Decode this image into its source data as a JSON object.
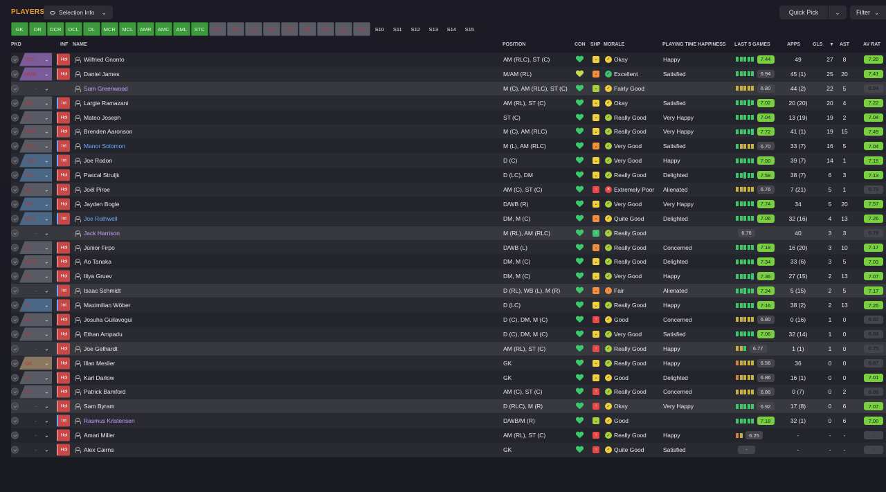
{
  "header": {
    "title": "PLAYERS",
    "selection_info": "Selection Info",
    "quick_pick": "Quick Pick",
    "filter": "Filter"
  },
  "positions": [
    {
      "label": "GK",
      "state": "green"
    },
    {
      "label": "DR",
      "state": "green"
    },
    {
      "label": "DCR",
      "state": "green"
    },
    {
      "label": "DCL",
      "state": "green"
    },
    {
      "label": "DL",
      "state": "green"
    },
    {
      "label": "MCR",
      "state": "green"
    },
    {
      "label": "MCL",
      "state": "green"
    },
    {
      "label": "AMR",
      "state": "green"
    },
    {
      "label": "AMC",
      "state": "green"
    },
    {
      "label": "AML",
      "state": "green"
    },
    {
      "label": "STC",
      "state": "green"
    },
    {
      "label": "S1",
      "state": "grey"
    },
    {
      "label": "S2",
      "state": "grey"
    },
    {
      "label": "S3",
      "state": "grey"
    },
    {
      "label": "S4",
      "state": "grey"
    },
    {
      "label": "S5",
      "state": "grey"
    },
    {
      "label": "S6",
      "state": "grey"
    },
    {
      "label": "S7",
      "state": "grey"
    },
    {
      "label": "S8",
      "state": "grey"
    },
    {
      "label": "S9",
      "state": "grey"
    },
    {
      "label": "S10",
      "state": "dark"
    },
    {
      "label": "S11",
      "state": "dark"
    },
    {
      "label": "S12",
      "state": "dark"
    },
    {
      "label": "S13",
      "state": "dark"
    },
    {
      "label": "S14",
      "state": "dark"
    },
    {
      "label": "S15",
      "state": "dark"
    }
  ],
  "columns": {
    "pkd": "PKD",
    "inf": "INF",
    "name": "NAME",
    "position": "POSITION",
    "con": "CON",
    "shp": "SHP",
    "morale": "MORALE",
    "pth": "PLAYING TIME HAPPINESS",
    "last5": "LAST 5 GAMES",
    "apps": "APPS",
    "gls": "GLS",
    "ast": "AST",
    "avrat": "AV RAT"
  },
  "players": [
    {
      "pos": "STC",
      "poscol": "purple",
      "inf": "Hol",
      "name": "Wilfried Gnonto",
      "namecol": "",
      "position": "AM (RLC), ST (C)",
      "con": "g",
      "shp": "y",
      "mi": "mi-y",
      "morale": "Okay",
      "pth": "Happy",
      "bars": [
        "g",
        "g",
        "g",
        "g",
        "g"
      ],
      "rating": "7.44",
      "rc": "r-green",
      "apps": "49",
      "gls": "27",
      "ast": "8",
      "avrat": "7.20",
      "ac": "r-green"
    },
    {
      "pos": "AMR",
      "poscol": "purple",
      "inf": "Hol",
      "name": "Daniel James",
      "namecol": "",
      "position": "M/AM (RL)",
      "con": "yel",
      "shp": "o",
      "mi": "mi-g",
      "morale": "Excellent",
      "pth": "Satisfied",
      "bars": [
        "g",
        "g",
        "g",
        "g",
        "g"
      ],
      "rating": "6.94",
      "rc": "r-grey",
      "apps": "45 (1)",
      "gls": "25",
      "ast": "20",
      "avrat": "7.41",
      "ac": "r-green"
    },
    {
      "pos": "-",
      "poscol": "none",
      "inf": "",
      "name": "Sam Greenwood",
      "namecol": "purple",
      "position": "M (C), AM (RLC), ST (C)",
      "con": "g",
      "shp": "lg",
      "mi": "mi-y",
      "morale": "Fairly Good",
      "pth": "",
      "bars": [
        "y",
        "y",
        "y",
        "y",
        "y"
      ],
      "rating": "6.80",
      "rc": "r-grey",
      "apps": "44 (2)",
      "gls": "22",
      "ast": "5",
      "avrat": "6.94",
      "ac": "r-grey",
      "hl": true
    },
    {
      "pos": "MR",
      "poscol": "greyp",
      "inf": "Int",
      "name": "Largie Ramazani",
      "namecol": "",
      "position": "AM (RL), ST (C)",
      "con": "g",
      "shp": "y",
      "mi": "mi-y",
      "morale": "Okay",
      "pth": "Satisfied",
      "bars": [
        "g",
        "g",
        "g",
        "tg",
        "g"
      ],
      "rating": "7.02",
      "rc": "r-green",
      "apps": "20 (20)",
      "gls": "20",
      "ast": "4",
      "avrat": "7.22",
      "ac": "r-green"
    },
    {
      "pos": "ST",
      "poscol": "greyp",
      "inf": "Hol",
      "name": "Mateo Joseph",
      "namecol": "",
      "position": "ST (C)",
      "con": "g",
      "shp": "y",
      "mi": "mi-lg",
      "morale": "Really Good",
      "pth": "Very Happy",
      "bars": [
        "g",
        "g",
        "g",
        "g",
        "g"
      ],
      "rating": "7.04",
      "rc": "r-green",
      "apps": "13 (19)",
      "gls": "19",
      "ast": "2",
      "avrat": "7.04",
      "ac": "r-green"
    },
    {
      "pos": "AMC",
      "poscol": "greyp",
      "inf": "Hol",
      "name": "Brenden Aaronson",
      "namecol": "",
      "position": "M (C), AM (RLC)",
      "con": "g",
      "shp": "y",
      "mi": "mi-lg",
      "morale": "Really Good",
      "pth": "Very Happy",
      "bars": [
        "g",
        "g",
        "g",
        "g",
        "tg"
      ],
      "rating": "7.72",
      "rc": "r-green",
      "apps": "41 (1)",
      "gls": "19",
      "ast": "15",
      "avrat": "7.49",
      "ac": "r-green"
    },
    {
      "pos": "AML",
      "poscol": "greyp",
      "inf": "Int",
      "name": "Manor Solomon",
      "namecol": "blue",
      "position": "M (L), AM (RLC)",
      "con": "g",
      "shp": "o",
      "mi": "mi-lg",
      "morale": "Very Good",
      "pth": "Satisfied",
      "bars": [
        "g",
        "y",
        "y",
        "y",
        "y"
      ],
      "rating": "6.70",
      "rc": "r-grey",
      "apps": "33 (7)",
      "gls": "16",
      "ast": "5",
      "avrat": "7.04",
      "ac": "r-green"
    },
    {
      "pos": "DCR",
      "poscol": "blue",
      "inf": "Int",
      "name": "Joe Rodon",
      "namecol": "",
      "position": "D (C)",
      "con": "g",
      "shp": "y",
      "mi": "mi-lg",
      "morale": "Very Good",
      "pth": "Happy",
      "bars": [
        "g",
        "g",
        "g",
        "g",
        "g"
      ],
      "rating": "7.00",
      "rc": "r-green",
      "apps": "39 (7)",
      "gls": "14",
      "ast": "1",
      "avrat": "7.15",
      "ac": "r-green"
    },
    {
      "pos": "DCL",
      "poscol": "blue",
      "inf": "Hol",
      "name": "Pascal Struijk",
      "namecol": "",
      "position": "D (LC), DM",
      "con": "g",
      "shp": "y",
      "mi": "mi-lg",
      "morale": "Really Good",
      "pth": "Delighted",
      "bars": [
        "g",
        "g",
        "tg",
        "g",
        "g"
      ],
      "rating": "7.58",
      "rc": "r-green",
      "apps": "38 (7)",
      "gls": "6",
      "ast": "3",
      "avrat": "7.13",
      "ac": "r-green"
    },
    {
      "pos": "S1",
      "poscol": "greyp",
      "inf": "Hol",
      "name": "Joël Piroe",
      "namecol": "",
      "position": "AM (C), ST (C)",
      "con": "g",
      "shp": "r",
      "mi": "mi-r",
      "morale": "Extremely Poor",
      "pth": "Alienated",
      "bars": [
        "y",
        "y",
        "y",
        "y",
        "y"
      ],
      "rating": "6.76",
      "rc": "r-grey",
      "apps": "7 (21)",
      "gls": "5",
      "ast": "1",
      "avrat": "6.75",
      "ac": "r-grey"
    },
    {
      "pos": "DR",
      "poscol": "blue",
      "inf": "Hol",
      "name": "Jayden Bogle",
      "namecol": "",
      "position": "D/WB (R)",
      "con": "g",
      "shp": "y",
      "mi": "mi-lg",
      "morale": "Very Good",
      "pth": "Very Happy",
      "bars": [
        "g",
        "g",
        "g",
        "g",
        "g"
      ],
      "rating": "7.74",
      "rc": "r-green",
      "apps": "34",
      "gls": "5",
      "ast": "20",
      "avrat": "7.57",
      "ac": "r-green"
    },
    {
      "pos": "MCL",
      "poscol": "blue",
      "inf": "Int",
      "name": "Joe Rothwell",
      "namecol": "blue",
      "position": "DM, M (C)",
      "con": "g",
      "shp": "o",
      "mi": "mi-y",
      "morale": "Quite Good",
      "pth": "Delighted",
      "bars": [
        "g",
        "g",
        "g",
        "g",
        "g"
      ],
      "rating": "7.06",
      "rc": "r-green",
      "apps": "32 (16)",
      "gls": "4",
      "ast": "13",
      "avrat": "7.26",
      "ac": "r-green"
    },
    {
      "pos": "-",
      "poscol": "none",
      "inf": "",
      "name": "Jack Harrison",
      "namecol": "purple",
      "position": "M (RL), AM (RLC)",
      "con": "g",
      "shp": "g",
      "mi": "mi-lg",
      "morale": "Really Good",
      "pth": "",
      "bars": [],
      "rating": "6.76",
      "rc": "r-grey",
      "apps": "40",
      "gls": "3",
      "ast": "3",
      "avrat": "6.79",
      "ac": "r-grey",
      "hl": true
    },
    {
      "pos": "S2",
      "poscol": "greyp",
      "inf": "Hol",
      "name": "Júnior Firpo",
      "namecol": "",
      "position": "D/WB (L)",
      "con": "g",
      "shp": "o",
      "mi": "mi-lg",
      "morale": "Really Good",
      "pth": "Concerned",
      "bars": [
        "g",
        "g",
        "g",
        "g",
        "g"
      ],
      "rating": "7.18",
      "rc": "r-green",
      "apps": "16 (20)",
      "gls": "3",
      "ast": "10",
      "avrat": "7.17",
      "ac": "r-green"
    },
    {
      "pos": "MCR",
      "poscol": "greyp",
      "inf": "Hol",
      "name": "Ao Tanaka",
      "namecol": "",
      "position": "DM, M (C)",
      "con": "g",
      "shp": "y",
      "mi": "mi-lg",
      "morale": "Really Good",
      "pth": "Delighted",
      "bars": [
        "g",
        "g",
        "g",
        "g",
        "g"
      ],
      "rating": "7.34",
      "rc": "r-green",
      "apps": "33 (6)",
      "gls": "3",
      "ast": "5",
      "avrat": "7.03",
      "ac": "r-green"
    },
    {
      "pos": "S3",
      "poscol": "greyp",
      "inf": "Hol",
      "name": "Iliya Gruev",
      "namecol": "",
      "position": "DM, M (C)",
      "con": "g",
      "shp": "y",
      "mi": "mi-lg",
      "morale": "Very Good",
      "pth": "Happy",
      "bars": [
        "g",
        "g",
        "g",
        "g",
        "tg"
      ],
      "rating": "7.36",
      "rc": "r-green",
      "apps": "27 (15)",
      "gls": "2",
      "ast": "13",
      "avrat": "7.07",
      "ac": "r-green"
    },
    {
      "pos": "-",
      "poscol": "none",
      "inf": "Int",
      "name": "Isaac Schmidt",
      "namecol": "",
      "position": "D (RL), WB (L), M (R)",
      "con": "g",
      "shp": "o",
      "mi": "mi-o",
      "morale": "Fair",
      "pth": "Alienated",
      "bars": [
        "g",
        "g",
        "tg",
        "g",
        "g"
      ],
      "rating": "7.24",
      "rc": "r-green",
      "apps": "5 (15)",
      "gls": "2",
      "ast": "5",
      "avrat": "7.17",
      "ac": "r-green",
      "hl": true
    },
    {
      "pos": "DL",
      "poscol": "blue",
      "inf": "Int",
      "name": "Maximilian Wöber",
      "namecol": "",
      "position": "D (LC)",
      "con": "g",
      "shp": "y",
      "mi": "mi-lg",
      "morale": "Really Good",
      "pth": "Happy",
      "bars": [
        "g",
        "g",
        "g",
        "g",
        "g"
      ],
      "rating": "7.16",
      "rc": "r-green",
      "apps": "38 (2)",
      "gls": "2",
      "ast": "13",
      "avrat": "7.25",
      "ac": "r-green"
    },
    {
      "pos": "S4",
      "poscol": "greyp",
      "inf": "Hol",
      "name": "Josuha Guilavogui",
      "namecol": "",
      "position": "D (C), DM, M (C)",
      "con": "g",
      "shp": "r",
      "mi": "mi-y",
      "morale": "Good",
      "pth": "Concerned",
      "bars": [
        "y",
        "y",
        "y",
        "y",
        "y"
      ],
      "rating": "6.80",
      "rc": "r-grey",
      "apps": "0 (16)",
      "gls": "1",
      "ast": "0",
      "avrat": "6.82",
      "ac": "r-grey"
    },
    {
      "pos": "S5",
      "poscol": "greyp",
      "inf": "Hol",
      "name": "Ethan Ampadu",
      "namecol": "",
      "position": "D (C), DM, M (C)",
      "con": "g",
      "shp": "y",
      "mi": "mi-lg",
      "morale": "Very Good",
      "pth": "Satisfied",
      "bars": [
        "g",
        "g",
        "g",
        "g",
        "g"
      ],
      "rating": "7.06",
      "rc": "r-green",
      "apps": "32 (14)",
      "gls": "1",
      "ast": "0",
      "avrat": "6.88",
      "ac": "r-grey"
    },
    {
      "pos": "-",
      "poscol": "none",
      "inf": "Hol",
      "name": "Joe Gelhardt",
      "namecol": "",
      "position": "AM (RL), ST (C)",
      "con": "g",
      "shp": "r",
      "mi": "mi-lg",
      "morale": "Really Good",
      "pth": "Happy",
      "bars": [
        "y",
        "y",
        "g"
      ],
      "rating": "6.77",
      "rc": "r-grey",
      "apps": "1 (1)",
      "gls": "1",
      "ast": "0",
      "avrat": "6.75",
      "ac": "r-grey",
      "hl": true
    },
    {
      "pos": "GK",
      "poscol": "tan",
      "inf": "Hol",
      "name": "Illan Meslier",
      "namecol": "",
      "position": "GK",
      "con": "g",
      "shp": "y",
      "mi": "mi-lg",
      "morale": "Really Good",
      "pth": "Happy",
      "bars": [
        "o",
        "y",
        "y",
        "y",
        "y"
      ],
      "rating": "6.56",
      "rc": "r-grey",
      "apps": "36",
      "gls": "0",
      "ast": "0",
      "avrat": "6.87",
      "ac": "r-grey"
    },
    {
      "pos": "S7",
      "poscol": "greyp",
      "inf": "Hol",
      "name": "Karl Darlow",
      "namecol": "",
      "position": "GK",
      "con": "g",
      "shp": "y",
      "mi": "mi-y",
      "morale": "Good",
      "pth": "Delighted",
      "bars": [
        "o",
        "y",
        "y",
        "y",
        "y"
      ],
      "rating": "6.86",
      "rc": "r-grey",
      "apps": "16 (1)",
      "gls": "0",
      "ast": "0",
      "avrat": "7.01",
      "ac": "r-green"
    },
    {
      "pos": "S8",
      "poscol": "greyp",
      "inf": "Hol",
      "name": "Patrick Bamford",
      "namecol": "",
      "position": "AM (C), ST (C)",
      "con": "g",
      "shp": "r",
      "mi": "mi-lg",
      "morale": "Really Good",
      "pth": "Concerned",
      "bars": [
        "y",
        "y",
        "y",
        "y",
        "y"
      ],
      "rating": "6.86",
      "rc": "r-grey",
      "apps": "0 (7)",
      "gls": "0",
      "ast": "2",
      "avrat": "6.86",
      "ac": "r-grey"
    },
    {
      "pos": "-",
      "poscol": "none",
      "inf": "Hol",
      "name": "Sam Byram",
      "namecol": "",
      "position": "D (RLC), M (R)",
      "con": "g",
      "shp": "r",
      "mi": "mi-y",
      "morale": "Okay",
      "pth": "Very Happy",
      "bars": [
        "g",
        "g",
        "g",
        "g",
        "g"
      ],
      "rating": "6.92",
      "rc": "r-grey",
      "apps": "17 (8)",
      "gls": "0",
      "ast": "6",
      "avrat": "7.07",
      "ac": "r-green",
      "hl": true
    },
    {
      "pos": "-",
      "poscol": "none",
      "inf": "Int",
      "name": "Rasmus Kristensen",
      "namecol": "purple",
      "position": "D/WB/M (R)",
      "con": "g",
      "shp": "lg",
      "mi": "mi-y",
      "morale": "Good",
      "pth": "",
      "bars": [
        "g",
        "g",
        "g",
        "g",
        "g"
      ],
      "rating": "7.18",
      "rc": "r-green",
      "apps": "32 (1)",
      "gls": "0",
      "ast": "6",
      "avrat": "7.00",
      "ac": "r-green"
    },
    {
      "pos": "-",
      "poscol": "none",
      "inf": "Hol",
      "name": "Amari Miller",
      "namecol": "",
      "position": "AM (RL), ST (C)",
      "con": "g",
      "shp": "r",
      "mi": "mi-lg",
      "morale": "Really Good",
      "pth": "Happy",
      "bars": [
        "o",
        "y"
      ],
      "rating": "6.25",
      "rc": "r-grey",
      "apps": "-",
      "gls": "-",
      "ast": "-",
      "avrat": "-",
      "ac": "r-grey"
    },
    {
      "pos": "-",
      "poscol": "none",
      "inf": "Hol",
      "name": "Alex Cairns",
      "namecol": "",
      "position": "GK",
      "con": "g",
      "shp": "r",
      "mi": "mi-y",
      "morale": "Quite Good",
      "pth": "Satisfied",
      "bars": [],
      "rating": "-",
      "rc": "r-grey",
      "apps": "-",
      "gls": "-",
      "ast": "-",
      "avrat": "-",
      "ac": "r-grey"
    }
  ]
}
